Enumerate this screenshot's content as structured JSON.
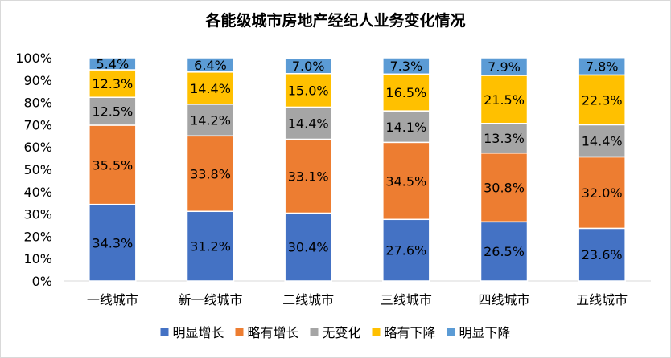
{
  "chart_data": {
    "type": "bar",
    "stacked": true,
    "title": "各能级城市房地产经纪人业务变化情况",
    "categories": [
      "一线城市",
      "新一线城市",
      "二线城市",
      "三线城市",
      "四线城市",
      "五线城市"
    ],
    "ylim": [
      0,
      100
    ],
    "yticks": [
      "0%",
      "10%",
      "20%",
      "30%",
      "40%",
      "50%",
      "60%",
      "70%",
      "80%",
      "90%",
      "100%"
    ],
    "legend_position": "bottom",
    "series": [
      {
        "name": "明显增长",
        "color": "#4472C4",
        "values": [
          34.3,
          31.2,
          30.4,
          27.6,
          26.5,
          23.6
        ],
        "labels": [
          "34.3%",
          "31.2%",
          "30.4%",
          "27.6%",
          "26.5%",
          "23.6%"
        ]
      },
      {
        "name": "略有增长",
        "color": "#ED7D31",
        "values": [
          35.5,
          33.8,
          33.1,
          34.5,
          30.8,
          32.0
        ],
        "labels": [
          "35.5%",
          "33.8%",
          "33.1%",
          "34.5%",
          "30.8%",
          "32.0%"
        ]
      },
      {
        "name": "无变化",
        "color": "#A5A5A5",
        "values": [
          12.5,
          14.2,
          14.4,
          14.1,
          13.3,
          14.4
        ],
        "labels": [
          "12.5%",
          "14.2%",
          "14.4%",
          "14.1%",
          "13.3%",
          "14.4%"
        ]
      },
      {
        "name": "略有下降",
        "color": "#FFC000",
        "values": [
          12.3,
          14.4,
          15.0,
          16.5,
          21.5,
          22.3
        ],
        "labels": [
          "12.3%",
          "14.4%",
          "15.0%",
          "16.5%",
          "21.5%",
          "22.3%"
        ]
      },
      {
        "name": "明显下降",
        "color": "#5B9BD5",
        "values": [
          5.4,
          6.4,
          7.0,
          7.3,
          7.9,
          7.8
        ],
        "labels": [
          "5.4%",
          "6.4%",
          "7.0%",
          "7.3%",
          "7.9%",
          "7.8%"
        ]
      }
    ]
  }
}
